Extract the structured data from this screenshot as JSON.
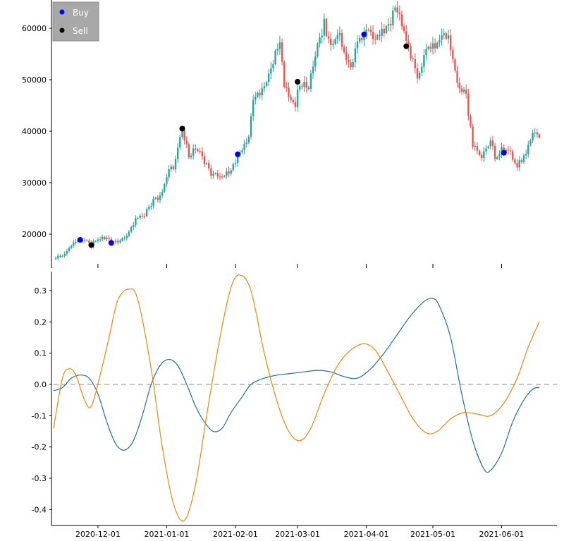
{
  "chart_data": [
    {
      "type": "candlestick",
      "x_range": [
        "2020-11-11",
        "2021-06-18"
      ],
      "ylim": [
        14000,
        64500
      ],
      "yticks": [
        20000,
        30000,
        40000,
        50000,
        60000
      ],
      "ytick_labels": [
        "20000",
        "30000",
        "40000",
        "50000",
        "60000"
      ],
      "colors": {
        "up": "#26a69a",
        "down": "#ef5350"
      },
      "close_series": [
        [
          "2020-11-11",
          15300
        ],
        [
          "2020-11-15",
          15900
        ],
        [
          "2020-11-20",
          18400
        ],
        [
          "2020-11-25",
          19000
        ],
        [
          "2020-11-28",
          17800
        ],
        [
          "2020-12-01",
          19300
        ],
        [
          "2020-12-06",
          19100
        ],
        [
          "2020-12-10",
          18400
        ],
        [
          "2020-12-13",
          19200
        ],
        [
          "2020-12-18",
          22900
        ],
        [
          "2020-12-22",
          23800
        ],
        [
          "2020-12-26",
          26400
        ],
        [
          "2020-12-29",
          27200
        ],
        [
          "2021-01-02",
          32500
        ],
        [
          "2021-01-04",
          33000
        ],
        [
          "2021-01-08",
          40500
        ],
        [
          "2021-01-11",
          35500
        ],
        [
          "2021-01-15",
          36800
        ],
        [
          "2021-01-21",
          31600
        ],
        [
          "2021-01-27",
          31200
        ],
        [
          "2021-01-31",
          33400
        ],
        [
          "2021-02-03",
          35500
        ],
        [
          "2021-02-07",
          38800
        ],
        [
          "2021-02-09",
          46400
        ],
        [
          "2021-02-13",
          47600
        ],
        [
          "2021-02-17",
          52000
        ],
        [
          "2021-02-21",
          57500
        ],
        [
          "2021-02-23",
          48900
        ],
        [
          "2021-02-28",
          45200
        ],
        [
          "2021-03-02",
          49600
        ],
        [
          "2021-03-06",
          48800
        ],
        [
          "2021-03-09",
          54800
        ],
        [
          "2021-03-13",
          61000
        ],
        [
          "2021-03-16",
          56000
        ],
        [
          "2021-03-20",
          58300
        ],
        [
          "2021-03-25",
          52400
        ],
        [
          "2021-03-29",
          57900
        ],
        [
          "2021-04-01",
          58800
        ],
        [
          "2021-04-05",
          58600
        ],
        [
          "2021-04-10",
          59800
        ],
        [
          "2021-04-14",
          63500
        ],
        [
          "2021-04-17",
          61300
        ],
        [
          "2021-04-20",
          56500
        ],
        [
          "2021-04-24",
          50000
        ],
        [
          "2021-04-27",
          54900
        ],
        [
          "2021-05-03",
          57200
        ],
        [
          "2021-05-08",
          58900
        ],
        [
          "2021-05-12",
          49400
        ],
        [
          "2021-05-16",
          46700
        ],
        [
          "2021-05-19",
          37500
        ],
        [
          "2021-05-23",
          34700
        ],
        [
          "2021-05-27",
          38500
        ],
        [
          "2021-05-29",
          34700
        ],
        [
          "2021-06-01",
          36700
        ],
        [
          "2021-06-05",
          35500
        ],
        [
          "2021-06-08",
          33500
        ],
        [
          "2021-06-12",
          35500
        ],
        [
          "2021-06-15",
          40200
        ],
        [
          "2021-06-18",
          38400
        ]
      ],
      "markers": [
        {
          "label": "Buy",
          "color": "#0000ff",
          "points": [
            [
              "2020-11-23",
              18900
            ],
            [
              "2020-12-07",
              18300
            ],
            [
              "2021-02-02",
              35500
            ],
            [
              "2021-03-31",
              58800
            ],
            [
              "2021-06-02",
              35800
            ]
          ]
        },
        {
          "label": "Sell",
          "color": "#000000",
          "points": [
            [
              "2020-11-28",
              17900
            ],
            [
              "2021-01-08",
              40500
            ],
            [
              "2021-03-01",
              49600
            ],
            [
              "2021-04-19",
              56500
            ]
          ]
        }
      ],
      "legend": {
        "placement": "top-left",
        "entries": [
          "Buy",
          "Sell"
        ]
      }
    },
    {
      "type": "line",
      "x_range": [
        "2020-11-11",
        "2021-06-18"
      ],
      "ylim": [
        -0.44,
        0.35
      ],
      "yticks": [
        -0.4,
        -0.3,
        -0.2,
        -0.1,
        0.0,
        0.1,
        0.2,
        0.3
      ],
      "ytick_labels": [
        "-0.4",
        "-0.3",
        "-0.2",
        "-0.1",
        "0.0",
        "0.1",
        "0.2",
        "0.3"
      ],
      "xtick_dates": [
        "2020-12-01",
        "2021-01-01",
        "2021-02-01",
        "2021-03-01",
        "2021-04-01",
        "2021-05-01",
        "2021-06-01"
      ],
      "xtick_labels": [
        "2020-12-01",
        "2021-01-01",
        "2021-02-01",
        "2021-03-01",
        "2021-04-01",
        "2021-05-01",
        "2021-06-01"
      ],
      "zero_line": true,
      "series": [
        {
          "color": "#1f6f9f",
          "points": [
            [
              "2020-11-11",
              -0.02
            ],
            [
              "2020-11-15",
              -0.01
            ],
            [
              "2020-11-19",
              0.02
            ],
            [
              "2020-11-23",
              0.03
            ],
            [
              "2020-11-27",
              0.02
            ],
            [
              "2020-12-01",
              -0.03
            ],
            [
              "2020-12-05",
              -0.12
            ],
            [
              "2020-12-09",
              -0.19
            ],
            [
              "2020-12-13",
              -0.21
            ],
            [
              "2020-12-17",
              -0.18
            ],
            [
              "2020-12-21",
              -0.1
            ],
            [
              "2020-12-25",
              0.0
            ],
            [
              "2020-12-29",
              0.06
            ],
            [
              "2021-01-02",
              0.08
            ],
            [
              "2021-01-06",
              0.06
            ],
            [
              "2021-01-10",
              0.0
            ],
            [
              "2021-01-14",
              -0.07
            ],
            [
              "2021-01-18",
              -0.12
            ],
            [
              "2021-01-22",
              -0.15
            ],
            [
              "2021-01-26",
              -0.14
            ],
            [
              "2021-01-30",
              -0.09
            ],
            [
              "2021-02-04",
              -0.04
            ],
            [
              "2021-02-08",
              0.0
            ],
            [
              "2021-02-14",
              0.02
            ],
            [
              "2021-02-20",
              0.03
            ],
            [
              "2021-02-26",
              0.035
            ],
            [
              "2021-03-04",
              0.04
            ],
            [
              "2021-03-10",
              0.045
            ],
            [
              "2021-03-16",
              0.04
            ],
            [
              "2021-03-22",
              0.025
            ],
            [
              "2021-03-28",
              0.02
            ],
            [
              "2021-04-03",
              0.05
            ],
            [
              "2021-04-09",
              0.1
            ],
            [
              "2021-04-15",
              0.16
            ],
            [
              "2021-04-21",
              0.22
            ],
            [
              "2021-04-27",
              0.265
            ],
            [
              "2021-05-01",
              0.275
            ],
            [
              "2021-05-04",
              0.25
            ],
            [
              "2021-05-09",
              0.15
            ],
            [
              "2021-05-14",
              -0.03
            ],
            [
              "2021-05-19",
              -0.18
            ],
            [
              "2021-05-24",
              -0.27
            ],
            [
              "2021-05-27",
              -0.275
            ],
            [
              "2021-06-01",
              -0.22
            ],
            [
              "2021-06-06",
              -0.12
            ],
            [
              "2021-06-11",
              -0.05
            ],
            [
              "2021-06-15",
              -0.015
            ],
            [
              "2021-06-18",
              -0.01
            ]
          ]
        },
        {
          "color": "#f0830a",
          "points": [
            [
              "2020-11-11",
              -0.14
            ],
            [
              "2020-11-15",
              0.02
            ],
            [
              "2020-11-18",
              0.05
            ],
            [
              "2020-11-21",
              0.03
            ],
            [
              "2020-11-25",
              -0.05
            ],
            [
              "2020-11-28",
              -0.07
            ],
            [
              "2020-12-02",
              0.03
            ],
            [
              "2020-12-06",
              0.15
            ],
            [
              "2020-12-10",
              0.27
            ],
            [
              "2020-12-15",
              0.305
            ],
            [
              "2020-12-19",
              0.27
            ],
            [
              "2020-12-25",
              0.05
            ],
            [
              "2020-12-30",
              -0.2
            ],
            [
              "2021-01-04",
              -0.38
            ],
            [
              "2021-01-09",
              -0.435
            ],
            [
              "2021-01-14",
              -0.32
            ],
            [
              "2021-01-19",
              -0.1
            ],
            [
              "2021-01-25",
              0.15
            ],
            [
              "2021-01-30",
              0.31
            ],
            [
              "2021-02-03",
              0.35
            ],
            [
              "2021-02-08",
              0.3
            ],
            [
              "2021-02-14",
              0.1
            ],
            [
              "2021-02-20",
              -0.06
            ],
            [
              "2021-02-25",
              -0.15
            ],
            [
              "2021-03-02",
              -0.18
            ],
            [
              "2021-03-07",
              -0.14
            ],
            [
              "2021-03-13",
              -0.03
            ],
            [
              "2021-03-19",
              0.06
            ],
            [
              "2021-03-25",
              0.11
            ],
            [
              "2021-03-31",
              0.13
            ],
            [
              "2021-04-05",
              0.11
            ],
            [
              "2021-04-10",
              0.05
            ],
            [
              "2021-04-16",
              -0.03
            ],
            [
              "2021-04-22",
              -0.11
            ],
            [
              "2021-04-28",
              -0.155
            ],
            [
              "2021-05-03",
              -0.15
            ],
            [
              "2021-05-09",
              -0.11
            ],
            [
              "2021-05-15",
              -0.09
            ],
            [
              "2021-05-21",
              -0.095
            ],
            [
              "2021-05-27",
              -0.1
            ],
            [
              "2021-06-02",
              -0.06
            ],
            [
              "2021-06-08",
              0.02
            ],
            [
              "2021-06-13",
              0.12
            ],
            [
              "2021-06-18",
              0.2
            ]
          ]
        }
      ]
    }
  ]
}
